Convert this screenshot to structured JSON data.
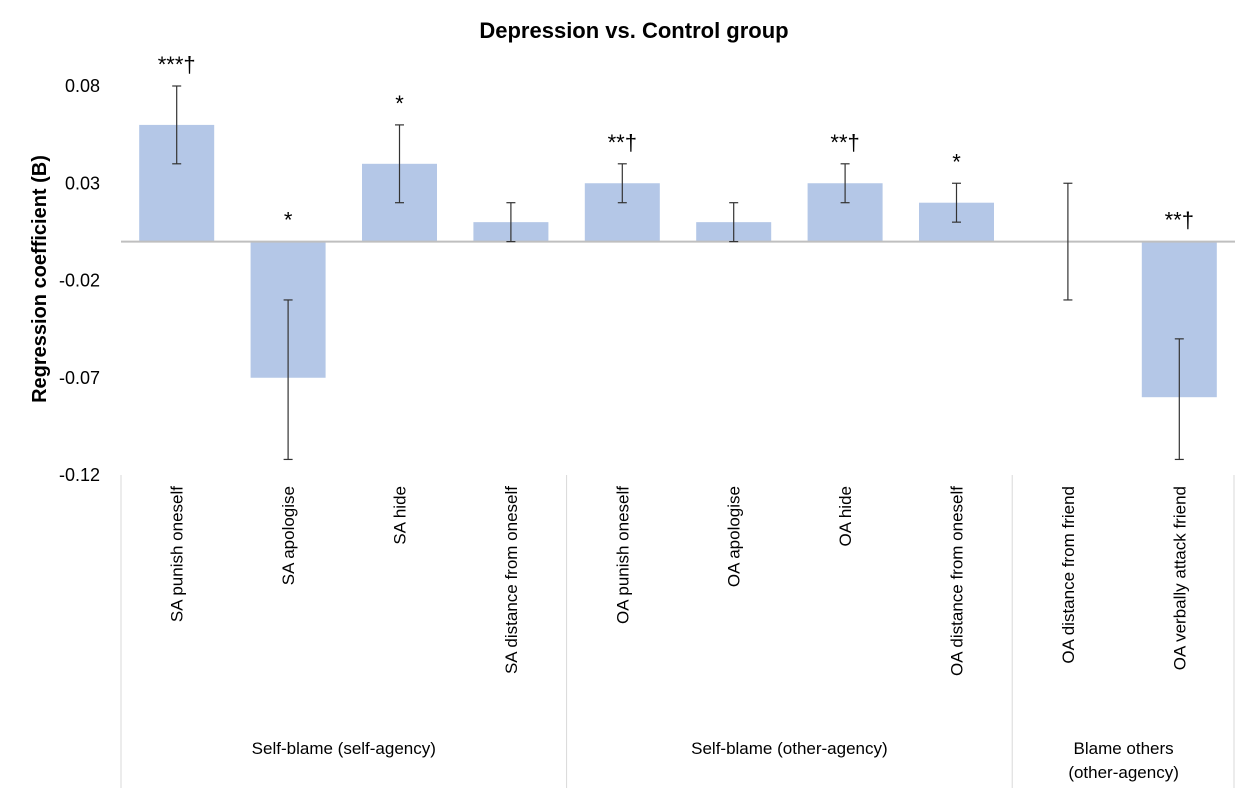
{
  "chart_data": {
    "type": "bar",
    "title": "Depression vs. Control group",
    "xlabel": "",
    "ylabel": "Regression coefficient (B)",
    "ylim": [
      -0.12,
      0.08
    ],
    "yticks": [
      "0.08",
      "0.03",
      "-0.02",
      "-0.07",
      "-0.12"
    ],
    "ytick_values": [
      0.08,
      0.03,
      -0.02,
      -0.07,
      -0.12
    ],
    "grid": false,
    "bar_color": "#b4c7e7",
    "categories": [
      "SA punish oneself",
      "SA apologise",
      "SA hide",
      "SA distance from oneself",
      "OA punish oneself",
      "OA apologise",
      "OA hide",
      "OA distance from oneself",
      "OA distance from friend",
      "OA verbally attack friend"
    ],
    "values": [
      0.06,
      -0.07,
      0.04,
      0.01,
      0.03,
      0.01,
      0.03,
      0.02,
      0.0,
      -0.08
    ],
    "error_low": [
      0.04,
      -0.112,
      0.02,
      0.0,
      0.02,
      0.0,
      0.02,
      0.01,
      -0.03,
      -0.112
    ],
    "error_high": [
      0.08,
      -0.03,
      0.06,
      0.02,
      0.04,
      0.02,
      0.04,
      0.03,
      0.03,
      -0.05
    ],
    "significance": [
      "***†",
      "*",
      "*",
      "",
      "**†",
      "",
      "**†",
      "*",
      "",
      "**†"
    ],
    "groups": [
      {
        "label": "Self-blame (self-agency)",
        "count": 4
      },
      {
        "label": "Self-blame (other-agency)",
        "count": 4
      },
      {
        "label": "Blame others (other-agency)",
        "count": 2
      }
    ]
  }
}
